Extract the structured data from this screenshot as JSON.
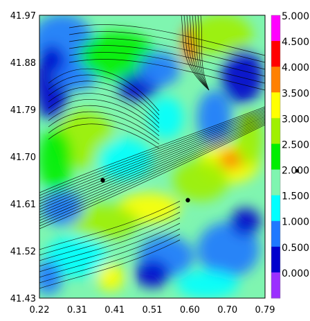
{
  "chart_data": {
    "type": "heatmap",
    "title": "",
    "xlabel": "",
    "ylabel": "",
    "xlim": [
      0.22,
      0.79
    ],
    "ylim": [
      41.43,
      41.97
    ],
    "x_ticks": [
      "0.22",
      "0.31",
      "0.41",
      "0.51",
      "0.60",
      "0.70",
      "0.79"
    ],
    "y_ticks": [
      "41.97",
      "41.88",
      "41.79",
      "41.70",
      "41.61",
      "41.52",
      "41.43"
    ],
    "colorbar": {
      "ticks": [
        "0.000",
        "0.500",
        "1.000",
        "1.500",
        "2.000",
        "2.500",
        "3.000",
        "3.500",
        "4.000",
        "4.500",
        "5.000"
      ],
      "colors": [
        "#9b30ff",
        "#0000cd",
        "#1e78ff",
        "#00ffff",
        "#7ff5b0",
        "#00ee00",
        "#a0f000",
        "#ffff00",
        "#ff8000",
        "#ff0000",
        "#ff00ff"
      ]
    },
    "markers": [
      {
        "x": 0.38,
        "y": 41.655
      },
      {
        "x": 0.595,
        "y": 41.617
      }
    ],
    "legend_marker": "•",
    "field_note": "speed-like scalar field with streamlines; values mostly 1.0–3.0, higher (≈3.5–4.5) along ridge near x≈0.70 y≈41.68 and x≈0.60 y≈41.90"
  }
}
